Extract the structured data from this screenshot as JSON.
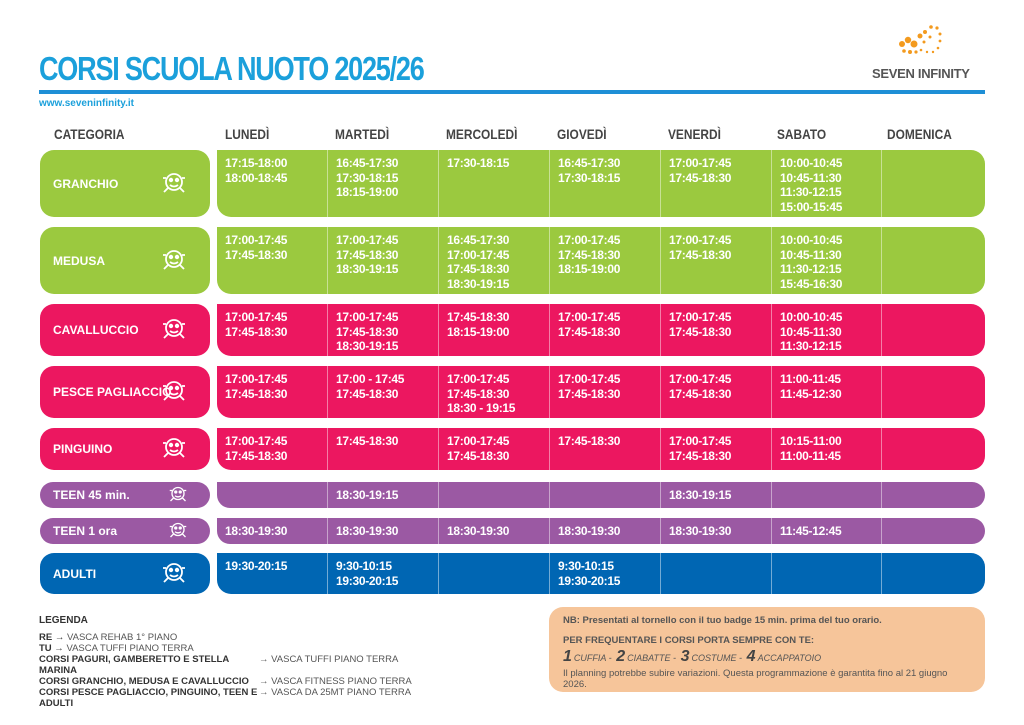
{
  "header": {
    "title": "CORSI SCUOLA NUOTO 2025/26",
    "logo_text": "SEVEN INFINITY",
    "url": "www.seveninfinity.it"
  },
  "columns": [
    "CATEGORIA",
    "LUNEDÌ",
    "MARTEDÌ",
    "MERCOLEDÌ",
    "GIOVEDÌ",
    "VENERDÌ",
    "SABATO",
    "DOMENICA"
  ],
  "colors": {
    "green": "#9bc93f",
    "pink": "#ec1760",
    "purple": "#9b59a3",
    "blue": "#0066b3",
    "title": "#1ba0db"
  },
  "rows": [
    {
      "category": "GRANCHIO",
      "icon": "crab-icon",
      "days": [
        "17:15-18:00\n18:00-18:45",
        "16:45-17:30\n17:30-18:15\n18:15-19:00",
        "17:30-18:15",
        "16:45-17:30\n17:30-18:15",
        "17:00-17:45\n17:45-18:30",
        "10:00-10:45\n10:45-11:30\n11:30-12:15\n15:00-15:45",
        ""
      ]
    },
    {
      "category": "MEDUSA",
      "icon": "jellyfish-icon",
      "days": [
        "17:00-17:45\n17:45-18:30",
        "17:00-17:45\n17:45-18:30\n18:30-19:15",
        "16:45-17:30\n17:00-17:45\n17:45-18:30\n18:30-19:15",
        "17:00-17:45\n17:45-18:30\n18:15-19:00",
        "17:00-17:45\n17:45-18:30",
        "10:00-10:45\n10:45-11:30\n11:30-12:15\n15:45-16:30",
        ""
      ]
    },
    {
      "category": "CAVALLUCCIO",
      "icon": "seahorse-icon",
      "days": [
        "17:00-17:45\n17:45-18:30",
        "17:00-17:45\n17:45-18:30\n18:30-19:15",
        "17:45-18:30\n18:15-19:00",
        "17:00-17:45\n17:45-18:30",
        "17:00-17:45\n17:45-18:30",
        "10:00-10:45\n10:45-11:30\n11:30-12:15",
        ""
      ]
    },
    {
      "category": "PESCE PAGLIACCIO",
      "icon": "clownfish-icon",
      "days": [
        "17:00-17:45\n17:45-18:30",
        "17:00 - 17:45\n17:45-18:30",
        "17:00-17:45\n17:45-18:30\n18:30 - 19:15",
        "17:00-17:45\n17:45-18:30",
        "17:00-17:45\n17:45-18:30",
        "11:00-11:45\n11:45-12:30",
        ""
      ]
    },
    {
      "category": "PINGUINO",
      "icon": "penguin-icon",
      "days": [
        "17:00-17:45\n17:45-18:30",
        "17:45-18:30",
        "17:00-17:45\n17:45-18:30",
        "17:45-18:30",
        "17:00-17:45\n17:45-18:30",
        "10:15-11:00\n11:00-11:45",
        ""
      ]
    },
    {
      "category": "TEEN 45 min.",
      "icon": "cap-icon",
      "days": [
        "",
        "18:30-19:15",
        "",
        "",
        "18:30-19:15",
        "",
        ""
      ]
    },
    {
      "category": "TEEN 1 ora",
      "icon": "cap-icon",
      "days": [
        "18:30-19:30",
        "18:30-19:30",
        "18:30-19:30",
        "18:30-19:30",
        "18:30-19:30",
        "11:45-12:45",
        ""
      ]
    },
    {
      "category": "ADULTI",
      "icon": "adults-icon",
      "days": [
        "19:30-20:15",
        "9:30-10:15\n19:30-20:15",
        "",
        "9:30-10:15\n19:30-20:15",
        "",
        "",
        ""
      ]
    }
  ],
  "legend": {
    "title": "LEGENDA",
    "items": [
      {
        "key": "RE →",
        "value": "VASCA REHAB  1° PIANO"
      },
      {
        "key": "TU →",
        "value": "VASCA TUFFI PIANO TERRA"
      }
    ],
    "pools": [
      {
        "key": "CORSI PAGURI, GAMBERETTO E STELLA MARINA",
        "value": "→ VASCA TUFFI PIANO TERRA"
      },
      {
        "key": "CORSI GRANCHIO, MEDUSA E CAVALLUCCIO",
        "value": "→ VASCA FITNESS PIANO TERRA"
      },
      {
        "key": "CORSI PESCE PAGLIACCIO, PINGUINO, TEEN E ADULTI",
        "value": "→ VASCA DA 25MT PIANO TERRA"
      }
    ]
  },
  "notes": {
    "nb": "NB: Presentati al tornello con il tuo badge 15 min. prima del tuo orario.",
    "bring_title": "PER FREQUENTARE I CORSI PORTA SEMPRE CON TE:",
    "items": [
      {
        "n": "1",
        "label": "CUFFIA -"
      },
      {
        "n": "2",
        "label": "CIABATTE -"
      },
      {
        "n": "3",
        "label": "COSTUME -"
      },
      {
        "n": "4",
        "label": "ACCAPPATOIO"
      }
    ],
    "disclaimer": "Il planning potrebbe subire variazioni. Questa programmazione è garantita fino al 21 giugno 2026."
  }
}
